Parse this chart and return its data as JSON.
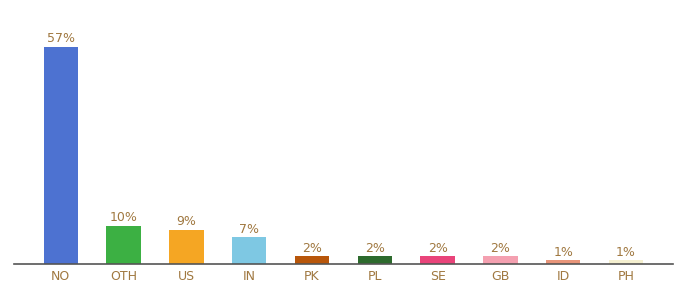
{
  "categories": [
    "NO",
    "OTH",
    "US",
    "IN",
    "PK",
    "PL",
    "SE",
    "GB",
    "ID",
    "PH"
  ],
  "values": [
    57,
    10,
    9,
    7,
    2,
    2,
    2,
    2,
    1,
    1
  ],
  "bar_colors": [
    "#4d72d1",
    "#3cb043",
    "#f5a623",
    "#7ec8e3",
    "#b8560a",
    "#2d6a2d",
    "#e9447a",
    "#f4a0b0",
    "#e8957a",
    "#f5f0d0"
  ],
  "label_color": "#a07840",
  "tick_color": "#a07840",
  "tick_fontsize": 9,
  "label_fontsize": 9,
  "ylim": [
    0,
    63
  ],
  "bar_width": 0.55,
  "background_color": "#ffffff",
  "bottom_spine_color": "#555555"
}
